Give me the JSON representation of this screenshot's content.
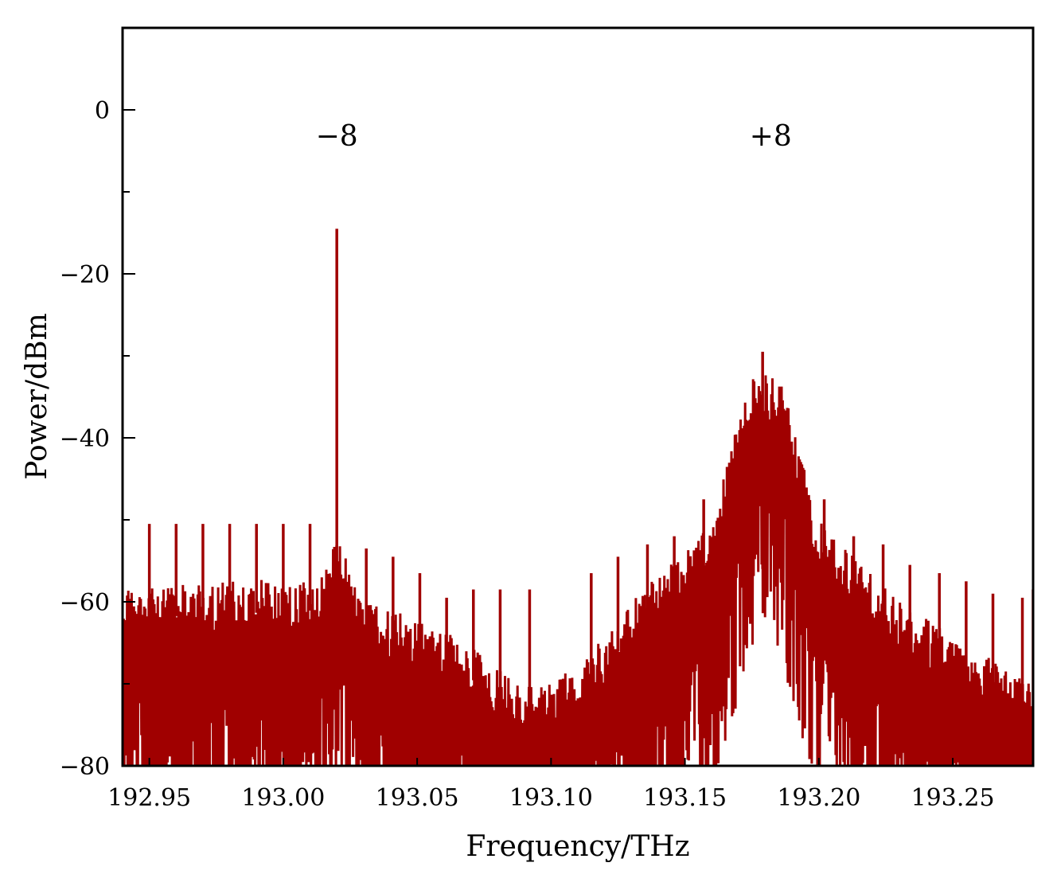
{
  "chart_data": {
    "type": "line",
    "xlabel": "Frequency/THz",
    "ylabel": "Power/dBm",
    "xlim": [
      192.94,
      193.28
    ],
    "ylim": [
      -80,
      10
    ],
    "x_ticks": [
      "192.95",
      "193.00",
      "193.05",
      "193.10",
      "193.15",
      "193.20",
      "193.25"
    ],
    "x_tick_values": [
      192.95,
      193.0,
      193.05,
      193.1,
      193.15,
      193.2,
      193.25
    ],
    "y_ticks": [
      "0",
      "−20",
      "−40",
      "−60",
      "−80"
    ],
    "y_tick_values": [
      0,
      -20,
      -40,
      -60,
      -80
    ],
    "y_minor_tick_values": [
      -10,
      -30,
      -50,
      -70
    ],
    "annotations": [
      {
        "text": "−8",
        "x": 193.02,
        "y": -3
      },
      {
        "text": "+8",
        "x": 193.182,
        "y": -3
      }
    ],
    "series_color": "#a00000",
    "series": [
      {
        "name": "",
        "peaks": [
          {
            "x": 193.02,
            "y": -14.5
          },
          {
            "x": 193.179,
            "y": -29.5
          },
          {
            "x": 193.168,
            "y": -42.5
          },
          {
            "x": 193.191,
            "y": -42.5
          },
          {
            "x": 193.157,
            "y": -47.5
          },
          {
            "x": 193.202,
            "y": -47.5
          },
          {
            "x": 193.146,
            "y": -52
          },
          {
            "x": 193.213,
            "y": -52
          },
          {
            "x": 192.95,
            "y": -50.5
          },
          {
            "x": 192.96,
            "y": -50.5
          },
          {
            "x": 192.97,
            "y": -50.5
          },
          {
            "x": 192.98,
            "y": -50.5
          },
          {
            "x": 192.99,
            "y": -50.5
          },
          {
            "x": 193.0,
            "y": -50.5
          },
          {
            "x": 193.01,
            "y": -50.5
          },
          {
            "x": 193.031,
            "y": -53.5
          },
          {
            "x": 193.041,
            "y": -54.5
          },
          {
            "x": 193.051,
            "y": -56.5
          },
          {
            "x": 193.061,
            "y": -59.5
          },
          {
            "x": 193.071,
            "y": -58.5
          },
          {
            "x": 193.081,
            "y": -58.5
          },
          {
            "x": 193.092,
            "y": -58.5
          },
          {
            "x": 193.115,
            "y": -56.5
          },
          {
            "x": 193.125,
            "y": -54.5
          },
          {
            "x": 193.136,
            "y": -53
          },
          {
            "x": 193.224,
            "y": -53
          },
          {
            "x": 193.234,
            "y": -55.5
          },
          {
            "x": 193.245,
            "y": -56.5
          },
          {
            "x": 193.255,
            "y": -57.5
          },
          {
            "x": 193.265,
            "y": -59
          },
          {
            "x": 193.276,
            "y": -59.5
          },
          {
            "x": 193.28,
            "y": -58.5
          }
        ],
        "floor_envelope": [
          {
            "x": 192.94,
            "y": -58
          },
          {
            "x": 193.015,
            "y": -57
          },
          {
            "x": 193.02,
            "y": -52
          },
          {
            "x": 193.03,
            "y": -60
          },
          {
            "x": 193.06,
            "y": -63
          },
          {
            "x": 193.09,
            "y": -70
          },
          {
            "x": 193.11,
            "y": -68
          },
          {
            "x": 193.13,
            "y": -60
          },
          {
            "x": 193.16,
            "y": -50
          },
          {
            "x": 193.175,
            "y": -32
          },
          {
            "x": 193.185,
            "y": -32
          },
          {
            "x": 193.2,
            "y": -50
          },
          {
            "x": 193.23,
            "y": -60
          },
          {
            "x": 193.28,
            "y": -70
          }
        ]
      }
    ]
  }
}
